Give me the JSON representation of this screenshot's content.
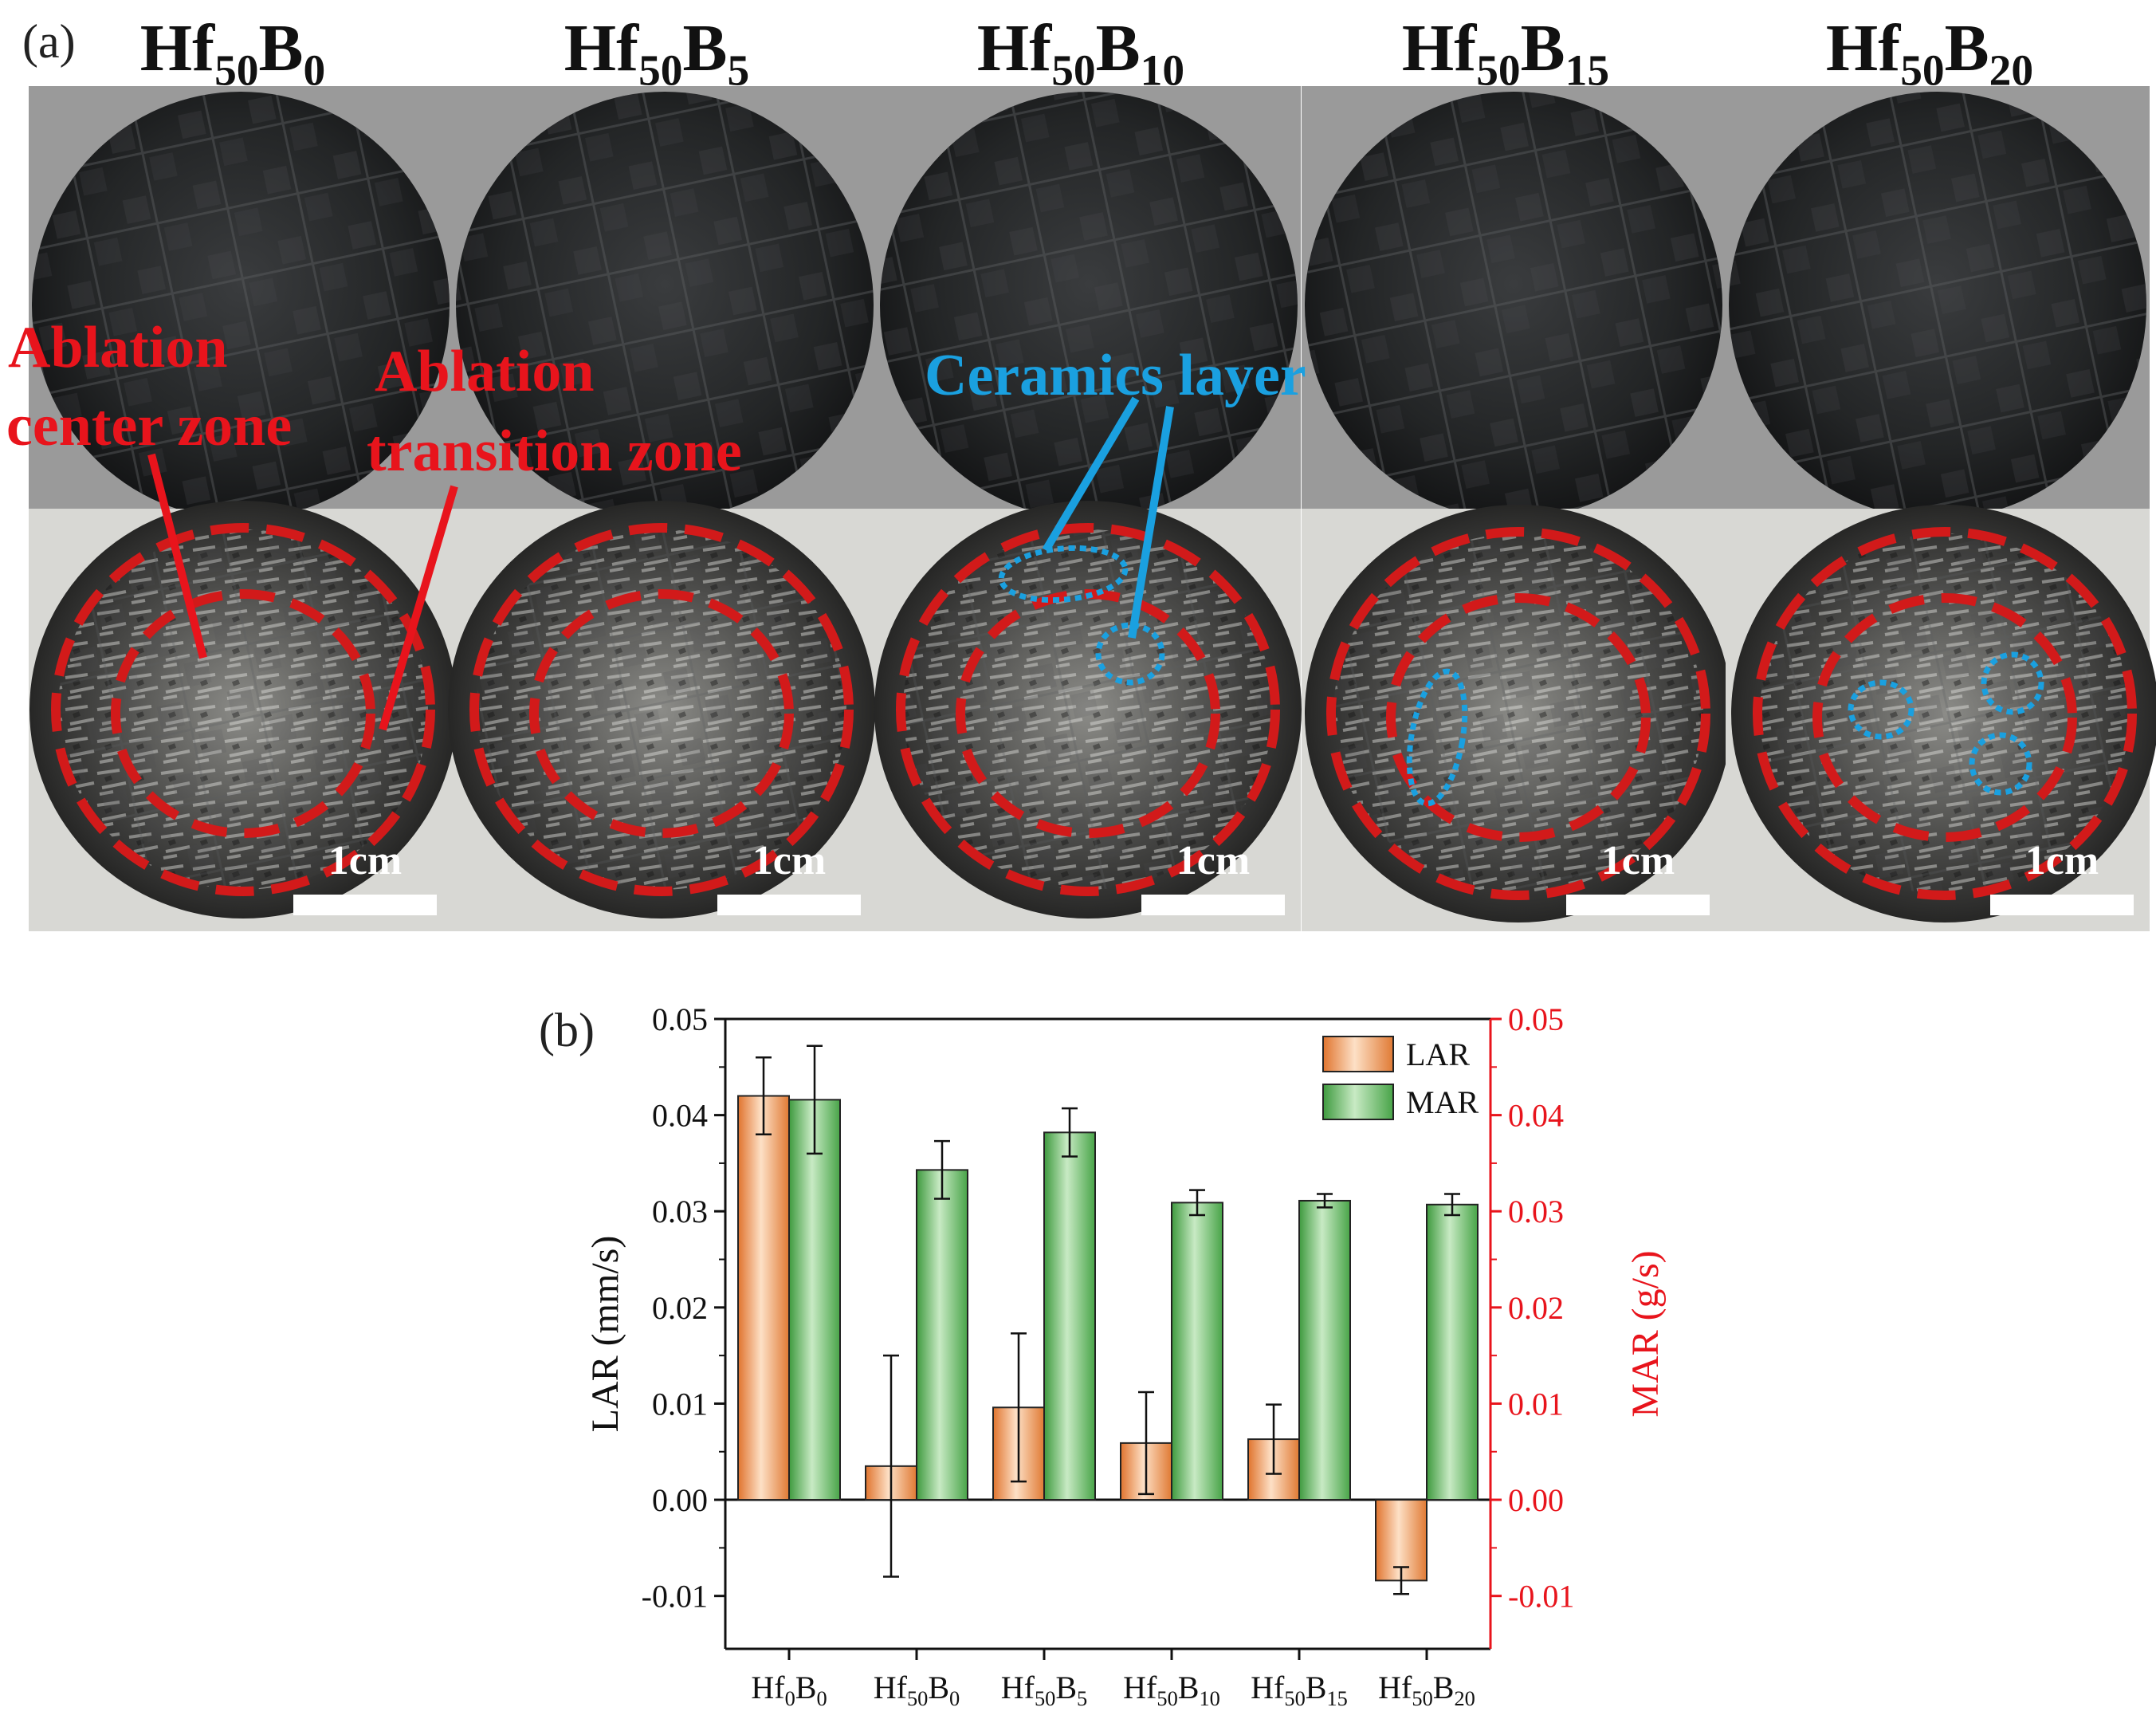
{
  "panel_a": {
    "label": "(a)",
    "samples": [
      {
        "base": "Hf",
        "sub1": "50",
        "base2": "B",
        "sub2": "0"
      },
      {
        "base": "Hf",
        "sub1": "50",
        "base2": "B",
        "sub2": "5"
      },
      {
        "base": "Hf",
        "sub1": "50",
        "base2": "B",
        "sub2": "10"
      },
      {
        "base": "Hf",
        "sub1": "50",
        "base2": "B",
        "sub2": "15"
      },
      {
        "base": "Hf",
        "sub1": "50",
        "base2": "B",
        "sub2": "20"
      }
    ],
    "annotations": {
      "center_zone_line1": "Ablation",
      "center_zone_line2": "center zone",
      "transition_zone_line1": "Ablation",
      "transition_zone_line2": "transition zone",
      "ceramics_layer": "Ceramics layer"
    },
    "scale_bar_label": "1cm",
    "colors": {
      "zone": "#d21a1a",
      "ceramic": "#1aa0e0",
      "bg_top": "#9a9a9a",
      "bg_bottom": "#d8d8d4"
    }
  },
  "chart_data": {
    "type": "bar",
    "panel_label": "(b)",
    "categories": [
      {
        "base": "Hf",
        "sub1": "0",
        "base2": "B",
        "sub2": "0"
      },
      {
        "base": "Hf",
        "sub1": "50",
        "base2": "B",
        "sub2": "0"
      },
      {
        "base": "Hf",
        "sub1": "50",
        "base2": "B",
        "sub2": "5"
      },
      {
        "base": "Hf",
        "sub1": "50",
        "base2": "B",
        "sub2": "10"
      },
      {
        "base": "Hf",
        "sub1": "50",
        "base2": "B",
        "sub2": "15"
      },
      {
        "base": "Hf",
        "sub1": "50",
        "base2": "B",
        "sub2": "20"
      }
    ],
    "series": [
      {
        "name": "LAR",
        "axis": "left",
        "color": "#f08c48",
        "values": [
          0.042,
          0.0035,
          0.0096,
          0.0059,
          0.0063,
          -0.0084
        ],
        "errors": [
          0.004,
          0.0115,
          0.0077,
          0.0053,
          0.0036,
          0.0014
        ]
      },
      {
        "name": "MAR",
        "axis": "right",
        "color": "#5cb85c",
        "values": [
          0.0416,
          0.0343,
          0.0382,
          0.0309,
          0.0311,
          0.0307
        ],
        "errors": [
          0.0056,
          0.003,
          0.0025,
          0.0013,
          0.0007,
          0.0011
        ]
      }
    ],
    "ylabel_left": "LAR (mm/s)",
    "ylabel_right": "MAR (g/s)",
    "ylim": [
      -0.0155,
      0.05
    ],
    "ticks": [
      "-0.01",
      "0.00",
      "0.01",
      "0.02",
      "0.03",
      "0.04",
      "0.05"
    ],
    "right_axis_color": "#e8141c",
    "legend_position": "top-right"
  }
}
